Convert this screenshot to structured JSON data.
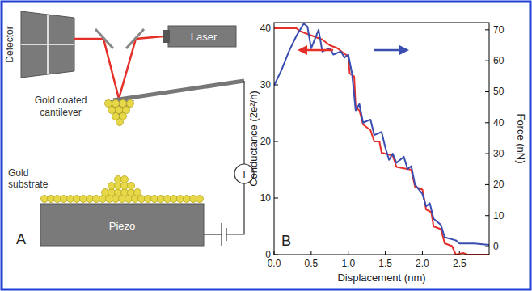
{
  "diagram": {
    "panel_label": "A",
    "detector": "Detector",
    "laser": "Laser",
    "cantilever": "Gold coated cantilever",
    "substrate": "Gold substrate",
    "piezo": "Piezo",
    "current": "I"
  },
  "chart_data": {
    "type": "line",
    "panel_label": "B",
    "x_label": "Displacement (nm)",
    "y_label": "Conductance (2e²/h)",
    "y2_label": "Force (nN)",
    "xlim": [
      0,
      2.9
    ],
    "xticks": [
      {
        "value": 0,
        "label": "0.0"
      },
      0.5,
      {
        "value": 1,
        "label": "1.0"
      },
      1.5,
      {
        "value": 2,
        "label": "2.0"
      },
      2.5
    ],
    "ylim": [
      0,
      41
    ],
    "yticks": [
      0,
      10,
      20,
      30,
      40
    ],
    "y2lim": [
      -2.6,
      72.3
    ],
    "y2ticks": [
      0,
      10,
      20,
      30,
      40,
      50,
      60,
      70
    ],
    "series": [
      {
        "name": "Conductance",
        "color": "#e5302a",
        "x": [
          0.0,
          0.1,
          0.2,
          0.3,
          0.35,
          0.45,
          0.55,
          0.65,
          0.75,
          0.85,
          0.95,
          1.0,
          1.02,
          1.08,
          1.1,
          1.15,
          1.2,
          1.3,
          1.35,
          1.42,
          1.45,
          1.6,
          1.65,
          1.85,
          1.9,
          2.0,
          2.05,
          2.12,
          2.15,
          2.25,
          2.3,
          2.4,
          2.45,
          2.55,
          2.6,
          2.9
        ],
        "values": [
          40,
          40,
          40,
          40,
          39.5,
          39,
          38.5,
          38,
          37,
          36.5,
          35.5,
          35,
          32,
          31.5,
          26,
          25.5,
          23,
          22,
          20,
          20,
          18,
          17.5,
          15.5,
          15,
          12,
          11.5,
          8,
          7.5,
          5,
          4.5,
          2,
          1.5,
          0,
          0.3,
          0,
          0
        ]
      },
      {
        "name": "Force",
        "color": "#3a4db0",
        "axis": "y2",
        "x": [
          0.0,
          0.1,
          0.2,
          0.3,
          0.4,
          0.45,
          0.5,
          0.6,
          0.65,
          0.75,
          0.8,
          0.9,
          0.95,
          1.0,
          1.05,
          1.1,
          1.15,
          1.2,
          1.3,
          1.35,
          1.45,
          1.5,
          1.55,
          1.6,
          1.65,
          1.75,
          1.8,
          1.85,
          1.9,
          2.0,
          2.05,
          2.1,
          2.15,
          2.25,
          2.3,
          2.45,
          2.5,
          2.7,
          2.9
        ],
        "values": [
          52,
          57,
          63,
          68,
          72,
          71,
          64,
          70,
          63,
          64,
          62,
          63,
          61,
          62,
          56,
          44,
          46,
          40,
          41,
          36,
          37,
          32,
          28,
          30,
          27,
          29,
          25,
          26,
          20,
          17,
          13,
          14,
          9,
          7,
          3,
          2,
          1,
          1,
          0.5
        ]
      }
    ]
  }
}
